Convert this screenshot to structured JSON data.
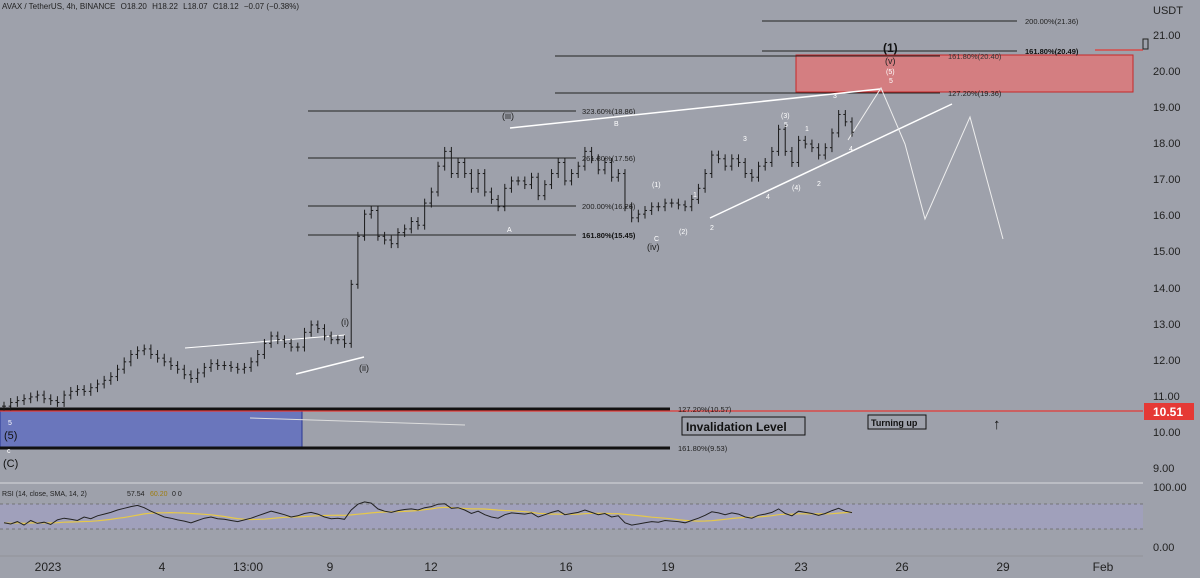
{
  "header": {
    "symbol": "AVAX / TetherUS, 4h, BINANCE",
    "open": "O18.20",
    "high": "H18.22",
    "low": "L18.07",
    "close": "C18.12",
    "change": "−0.07 (−0.38%)"
  },
  "price_axis": {
    "unit": "USDT",
    "ticks": [
      "21.00",
      "20.00",
      "19.00",
      "18.00",
      "17.00",
      "16.00",
      "15.00",
      "14.00",
      "13.00",
      "12.00",
      "11.00",
      "10.00",
      "9.00"
    ],
    "current_label": "10.51",
    "current_color": "#e53935"
  },
  "rsi_axis": {
    "ticks": [
      "100.00",
      "0.00"
    ],
    "label": "RSI (14, close, SMA, 14, 2)",
    "value_a": "57.54",
    "value_b": "60.20",
    "tail": "0  0"
  },
  "time_axis": {
    "ticks": [
      "2023",
      "4",
      "13:00",
      "9",
      "12",
      "16",
      "19",
      "23",
      "26",
      "29",
      "Feb"
    ]
  },
  "fib_levels": {
    "l1": "200.00%(21.36)",
    "l2": "161.80%(20.49)",
    "l3": "161.80%(20.40)",
    "l4": "127.20%(19.36)",
    "l5": "323.60%(18.86)",
    "l6": "261.80%(17.56)",
    "l7": "200.00%(16.26)",
    "l8": "161.80%(15.45)",
    "l9": "127.20%(10.57)",
    "l10": "161.80%(9.53)"
  },
  "annotations": {
    "invalidation": "Invalidation Level",
    "turning_up": "Turning up",
    "arrow": "↑",
    "wave_1": "(1)",
    "wave_v": "(v)",
    "wave_5p": "(5)",
    "wave_5": "5",
    "wave_iii": "(iii)",
    "wave_iv": "(iv)",
    "wave_i": "(i)",
    "wave_ii": "(ii)",
    "wave_B": "B",
    "wave_A": "A",
    "wave_C": "C",
    "wave_1p": "(1)",
    "wave_2p": "(2)",
    "wave_3p": "(3)",
    "wave_4p": "(4)",
    "sub_1": "1",
    "sub_2": "2",
    "sub_3": "3",
    "sub_4": "4",
    "sub_5": "5",
    "left_5": "5",
    "left_5p": "(5)",
    "left_Cp": "(C)",
    "left_c": "c"
  },
  "colors": {
    "background": "#9ea1ab",
    "resistance_zone": "#e57373",
    "support_zone": "#5c6bc0",
    "invalidation_line": "#e53935",
    "wedge": "#ffffff",
    "rsi_line": "#222222",
    "rsi_sma": "#e6c84a"
  },
  "chart_data": {
    "type": "candlestick",
    "y_range": [
      8.7,
      21.7
    ],
    "rsi_range": [
      0,
      100
    ],
    "current_price": 10.51,
    "last_bar": {
      "open": 18.2,
      "high": 18.22,
      "low": 18.07,
      "close": 18.12
    },
    "closes": [
      10.7,
      10.8,
      10.85,
      10.9,
      10.95,
      11.0,
      10.9,
      10.85,
      10.8,
      11.0,
      11.1,
      11.15,
      11.1,
      11.2,
      11.3,
      11.4,
      11.5,
      11.7,
      11.9,
      12.1,
      12.2,
      12.25,
      12.1,
      12.0,
      11.9,
      11.8,
      11.7,
      11.55,
      11.45,
      11.6,
      11.75,
      11.85,
      11.8,
      11.8,
      11.75,
      11.7,
      11.75,
      11.9,
      12.1,
      12.4,
      12.6,
      12.5,
      12.4,
      12.3,
      12.3,
      12.7,
      12.9,
      12.8,
      12.6,
      12.5,
      12.5,
      12.4,
      14.0,
      15.3,
      15.9,
      16.0,
      15.3,
      15.2,
      15.1,
      15.4,
      15.5,
      15.7,
      15.6,
      16.2,
      16.5,
      17.2,
      17.6,
      17.0,
      17.3,
      17.0,
      16.6,
      17.0,
      16.5,
      16.3,
      16.1,
      16.6,
      16.8,
      16.8,
      16.7,
      16.9,
      16.4,
      16.7,
      17.0,
      17.3,
      16.8,
      17.0,
      17.2,
      17.6,
      17.4,
      17.1,
      17.3,
      16.9,
      17.0,
      16.1,
      15.8,
      15.9,
      16.0,
      16.1,
      16.1,
      16.2,
      16.2,
      16.15,
      16.1,
      16.3,
      16.6,
      17.0,
      17.5,
      17.4,
      17.2,
      17.4,
      17.3,
      17.0,
      16.9,
      17.2,
      17.3,
      17.6,
      18.2,
      17.6,
      17.3,
      17.9,
      17.8,
      17.7,
      17.5,
      17.7,
      18.1,
      18.6,
      18.4,
      18.12
    ],
    "rsi": [
      40,
      38,
      42,
      36,
      44,
      39,
      41,
      37,
      45,
      48,
      46,
      44,
      50,
      47,
      52,
      55,
      58,
      62,
      65,
      68,
      70,
      66,
      60,
      55,
      50,
      48,
      45,
      43,
      40,
      44,
      48,
      50,
      47,
      46,
      44,
      42,
      45,
      48,
      52,
      56,
      60,
      57,
      54,
      50,
      52,
      56,
      58,
      55,
      50,
      47,
      48,
      46,
      62,
      72,
      76,
      74,
      64,
      60,
      58,
      61,
      63,
      64,
      62,
      66,
      68,
      72,
      73,
      65,
      66,
      62,
      56,
      60,
      54,
      50,
      48,
      54,
      57,
      56,
      55,
      57,
      50,
      54,
      58,
      61,
      54,
      56,
      58,
      62,
      58,
      54,
      56,
      50,
      52,
      40,
      36,
      38,
      40,
      42,
      41,
      44,
      43,
      42,
      40,
      44,
      48,
      53,
      59,
      57,
      54,
      57,
      55,
      50,
      48,
      53,
      55,
      58,
      64,
      56,
      52,
      60,
      58,
      56,
      53,
      56,
      61,
      65,
      60,
      57.54
    ],
    "rsi_sma_value": 60.2
  }
}
